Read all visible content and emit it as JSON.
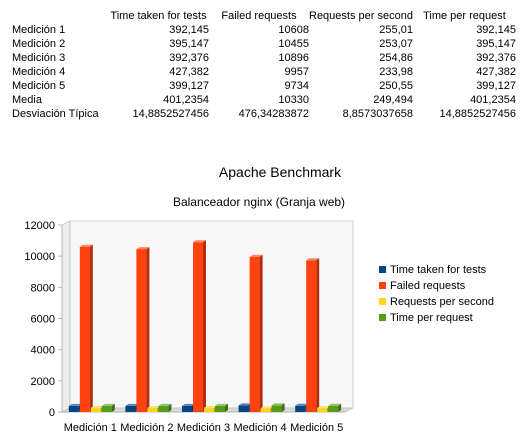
{
  "table": {
    "headers": [
      "",
      "Time taken for tests",
      "Failed requests",
      "Requests per second",
      "Time per request"
    ],
    "rows": [
      [
        "Medición 1",
        "392,145",
        "10608",
        "255,01",
        "392,145"
      ],
      [
        "Medición 2",
        "395,147",
        "10455",
        "253,07",
        "395,147"
      ],
      [
        "Medición 3",
        "392,376",
        "10896",
        "254,86",
        "392,376"
      ],
      [
        "Medición 4",
        "427,382",
        "9957",
        "233,98",
        "427,382"
      ],
      [
        "Medición 5",
        "399,127",
        "9734",
        "250,55",
        "399,127"
      ],
      [
        "Media",
        "401,2354",
        "10330",
        "249,494",
        "401,2354"
      ],
      [
        "Desviación Típica",
        "14,8852527456",
        "476,34283872",
        "8,8573037658",
        "14,8852527456"
      ]
    ]
  },
  "chart_data": {
    "type": "bar",
    "title": "Apache Benchmark",
    "subtitle": "Balanceador nginx (Granja web)",
    "categories": [
      "Medición 1",
      "Medición 2",
      "Medición 3",
      "Medición 4",
      "Medición 5"
    ],
    "series": [
      {
        "name": "Time taken for tests",
        "color": "#004586",
        "values": [
          392.145,
          395.147,
          392.376,
          427.382,
          399.127
        ]
      },
      {
        "name": "Failed requests",
        "color": "#ff420e",
        "values": [
          10608,
          10455,
          10896,
          9957,
          9734
        ]
      },
      {
        "name": "Requests per second",
        "color": "#ffd320",
        "values": [
          255.01,
          253.07,
          254.86,
          233.98,
          250.55
        ]
      },
      {
        "name": "Time per request",
        "color": "#579d1c",
        "values": [
          392.145,
          395.147,
          392.376,
          427.382,
          399.127
        ]
      }
    ],
    "ylim": [
      0,
      12000
    ],
    "yticks": [
      0,
      2000,
      4000,
      6000,
      8000,
      10000,
      12000
    ],
    "grid": false,
    "legend": "right",
    "style": "3d"
  }
}
